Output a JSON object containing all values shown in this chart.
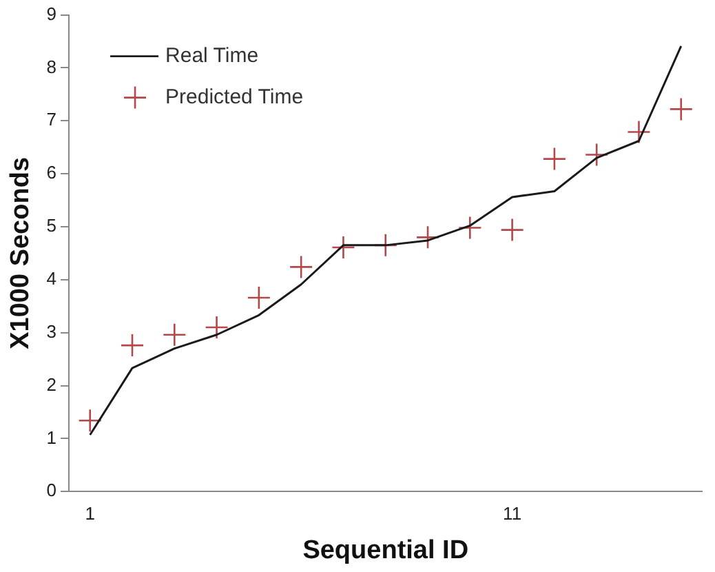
{
  "chart_data": {
    "type": "line",
    "xlabel": "Sequential ID",
    "ylabel": "X1000 Seconds",
    "categories": [
      "1",
      null,
      null,
      null,
      null,
      null,
      null,
      null,
      null,
      null,
      "11",
      null,
      null,
      null,
      null
    ],
    "series": [
      {
        "name": "Real Time",
        "color": "#1a1a1a",
        "marker": "none",
        "values": [
          1.07,
          2.33,
          2.7,
          2.96,
          3.33,
          3.91,
          4.65,
          4.65,
          4.74,
          5.02,
          5.56,
          5.67,
          6.3,
          6.62,
          8.41
        ]
      },
      {
        "name": "Predicted Time",
        "type": "scatter",
        "color": "#b5474b",
        "marker": "cross",
        "values": [
          1.34,
          2.76,
          2.96,
          3.1,
          3.66,
          4.24,
          4.61,
          4.65,
          4.8,
          4.98,
          4.94,
          6.28,
          6.36,
          6.79,
          7.22
        ]
      }
    ],
    "ylim": [
      0,
      9
    ],
    "yticks": [
      0,
      1,
      2,
      3,
      4,
      5,
      6,
      7,
      8,
      9
    ],
    "grid": false,
    "legend": "top left"
  }
}
